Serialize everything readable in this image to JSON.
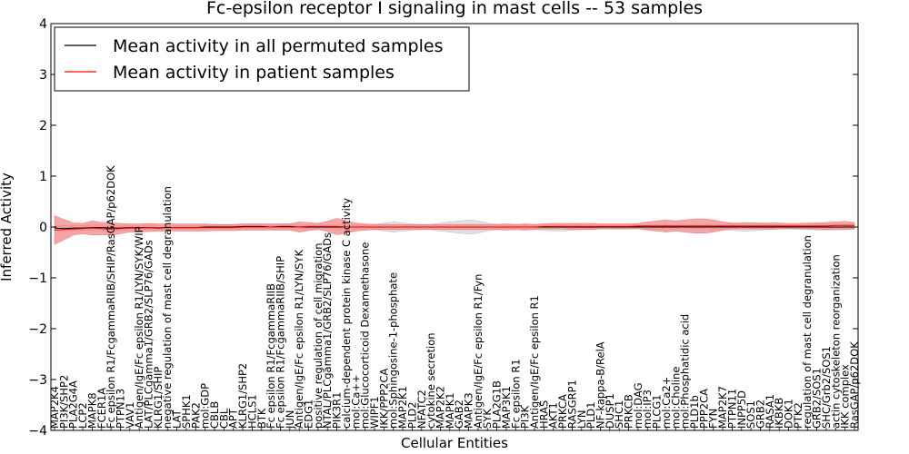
{
  "chart_data": {
    "type": "line",
    "title": "Fc-epsilon receptor I signaling in mast cells -- 53 samples",
    "xlabel": "Cellular Entities",
    "ylabel": "Inferred Activity",
    "ylim": [
      -4,
      4
    ],
    "yticks": [
      "−4",
      "−3",
      "−2",
      "−1",
      "0",
      "1",
      "2",
      "3",
      "4"
    ],
    "legend_position": "top-left",
    "categories": [
      "MAP2K4",
      "PI3K/SHP2",
      "PLA2G4A",
      "LCP2",
      "MAPK8",
      "FCER1A",
      "Fc epsilon R1/FcgammaRIIB/SHIP/RasGAP/p62DOK",
      "PTPN13",
      "VAV1",
      "Antigen/IgE/Fc epsilon R1/LYN/SYK/WIP",
      "LAT/PLCgamma1/GRB2/SLP76/GADs",
      "KLRG1/SHIP",
      "negative regulation of mast cell degranulation",
      "LAT",
      "SPHK1",
      "PAK2",
      "mol:GDP",
      "CBLB",
      "CBL",
      "APT",
      "KLRG1/SHP2",
      "HCLS1",
      "BTK",
      "Fc epsilon R1/FcgammaRIIB",
      "Fc epsilon R1/FcgammaRIIB/SHIP",
      "JUN",
      "Antigen/IgE/Fc epsilon R1/LYN/SYK",
      "EDG1",
      "positive regulation of cell migration",
      "NTAL/PLCgamma1/GRB2/SLP76/GADs",
      "PIK3R1",
      "calcium-dependent protein kinase C activity",
      "mol:Ca++",
      "mol:Glucocorticoid Dexamethasone",
      "WIPF1",
      "IKK/PPP2CA",
      "mol:Sphingosine-1-phosphate",
      "MAP2K1",
      "PLD2",
      "NFATC2",
      "cytokine secretion",
      "MAP2K2",
      "MAPK1",
      "GAB2",
      "MAPK3",
      "Antigen/IgE/Fc epsilon R1/Fyn",
      "SYK",
      "PLA2G1B",
      "MAP3K1",
      "Fc epsilon R1",
      "PI3K",
      "Antigen/IgE/Fc epsilon R1",
      "HRAS",
      "AKT1",
      "PRKCA",
      "RASGRP1",
      "LYN",
      "PLD1",
      "NF-kappa-B/RelA",
      "DUSP1",
      "SHC1",
      "PRKCB",
      "mol:DAG",
      "mol:IP3",
      "PLCG1",
      "mol:Ca2+",
      "mol:Choline",
      "mol:Phosphatidic acid",
      "PLD1b",
      "PPP2CA",
      "FYN",
      "MAP2K7",
      "PTPN11",
      "INPP5D",
      "SOS1",
      "GRB2",
      "RASA1",
      "IKBKB",
      "DOK1",
      "PTK2",
      "regulation of mast cell degranulation",
      "GRB2/SOS1",
      "SHC/Grb2/SOS1",
      "actin cytoskeleton reorganization",
      "IKK complex",
      "RasGAP/p62DOK"
    ],
    "series": [
      {
        "name": "Mean activity in all permuted samples",
        "color": "#000000",
        "band_color": "#c8c8c8",
        "values": [
          -0.02,
          -0.03,
          -0.02,
          -0.02,
          -0.01,
          -0.01,
          -0.02,
          -0.02,
          -0.01,
          -0.01,
          -0.01,
          -0.02,
          -0.01,
          -0.01,
          -0.01,
          -0.01,
          0.0,
          0.0,
          0.0,
          0.0,
          0.01,
          0.01,
          0.01,
          0.0,
          0.01,
          0.01,
          0.0,
          0.0,
          0.0,
          0.0,
          0.0,
          0.0,
          0.0,
          0.0,
          0.0,
          0.0,
          0.0,
          0.0,
          0.0,
          0.0,
          0.0,
          0.0,
          0.0,
          0.0,
          0.0,
          0.0,
          0.0,
          0.0,
          0.0,
          0.0,
          0.0,
          0.0,
          0.0,
          0.0,
          0.0,
          0.0,
          0.0,
          0.0,
          0.0,
          0.0,
          0.0,
          0.0,
          0.0,
          0.0,
          0.0,
          0.0,
          0.0,
          0.0,
          0.0,
          0.0,
          0.0,
          0.0,
          0.0,
          0.0,
          0.0,
          0.0,
          0.0,
          0.0,
          0.0,
          0.0,
          0.0,
          0.0,
          0.0,
          0.0,
          0.0,
          0.0
        ],
        "spread": [
          0.05,
          0.06,
          0.05,
          0.05,
          0.05,
          0.05,
          0.05,
          0.05,
          0.04,
          0.04,
          0.04,
          0.04,
          0.04,
          0.04,
          0.04,
          0.04,
          0.04,
          0.04,
          0.04,
          0.04,
          0.05,
          0.05,
          0.05,
          0.04,
          0.05,
          0.05,
          0.04,
          0.04,
          0.04,
          0.04,
          0.04,
          0.04,
          0.04,
          0.04,
          0.05,
          0.08,
          0.1,
          0.08,
          0.06,
          0.04,
          0.05,
          0.08,
          0.1,
          0.12,
          0.14,
          0.12,
          0.08,
          0.05,
          0.04,
          0.04,
          0.05,
          0.04,
          0.06,
          0.08,
          0.08,
          0.06,
          0.05,
          0.04,
          0.04,
          0.04,
          0.04,
          0.04,
          0.04,
          0.04,
          0.04,
          0.04,
          0.04,
          0.04,
          0.04,
          0.04,
          0.05,
          0.05,
          0.06,
          0.08,
          0.08,
          0.06,
          0.05,
          0.04,
          0.04,
          0.05,
          0.05,
          0.06,
          0.06,
          0.06,
          0.05,
          0.05
        ]
      },
      {
        "name": "Mean activity in patient samples",
        "color": "#ff0000",
        "band_color": "#f08080",
        "values": [
          -0.06,
          -0.05,
          -0.04,
          -0.03,
          -0.02,
          -0.03,
          -0.04,
          -0.03,
          -0.02,
          -0.02,
          -0.01,
          -0.01,
          -0.01,
          -0.01,
          -0.01,
          -0.01,
          -0.01,
          -0.01,
          -0.01,
          -0.01,
          0.0,
          0.0,
          0.0,
          0.0,
          0.0,
          0.0,
          0.0,
          0.01,
          0.01,
          0.01,
          0.01,
          0.0,
          0.0,
          0.0,
          0.0,
          0.0,
          0.0,
          0.0,
          0.0,
          0.0,
          0.0,
          0.0,
          0.0,
          0.0,
          0.0,
          0.0,
          0.0,
          0.0,
          0.0,
          0.0,
          0.0,
          0.0,
          0.01,
          0.01,
          0.01,
          0.01,
          0.01,
          0.01,
          0.01,
          0.01,
          0.01,
          0.01,
          0.02,
          0.02,
          0.02,
          0.02,
          0.02,
          0.02,
          0.02,
          0.02,
          0.02,
          0.02,
          0.02,
          0.02,
          0.02,
          0.02,
          0.02,
          0.02,
          0.02,
          0.02,
          0.02,
          0.02,
          0.02,
          0.03,
          0.03,
          0.03
        ],
        "spread": [
          0.28,
          0.2,
          0.12,
          0.1,
          0.14,
          0.12,
          0.12,
          0.1,
          0.08,
          0.08,
          0.08,
          0.07,
          0.07,
          0.07,
          0.07,
          0.07,
          0.07,
          0.06,
          0.06,
          0.06,
          0.06,
          0.06,
          0.06,
          0.06,
          0.06,
          0.06,
          0.1,
          0.08,
          0.06,
          0.1,
          0.16,
          0.12,
          0.08,
          0.06,
          0.05,
          0.05,
          0.05,
          0.05,
          0.05,
          0.05,
          0.05,
          0.05,
          0.05,
          0.05,
          0.05,
          0.05,
          0.05,
          0.05,
          0.06,
          0.05,
          0.06,
          0.05,
          0.05,
          0.05,
          0.05,
          0.06,
          0.06,
          0.06,
          0.05,
          0.05,
          0.05,
          0.05,
          0.05,
          0.08,
          0.1,
          0.12,
          0.1,
          0.12,
          0.14,
          0.14,
          0.12,
          0.08,
          0.06,
          0.06,
          0.06,
          0.06,
          0.06,
          0.06,
          0.05,
          0.05,
          0.06,
          0.06,
          0.07,
          0.07,
          0.08,
          0.06
        ]
      }
    ]
  }
}
